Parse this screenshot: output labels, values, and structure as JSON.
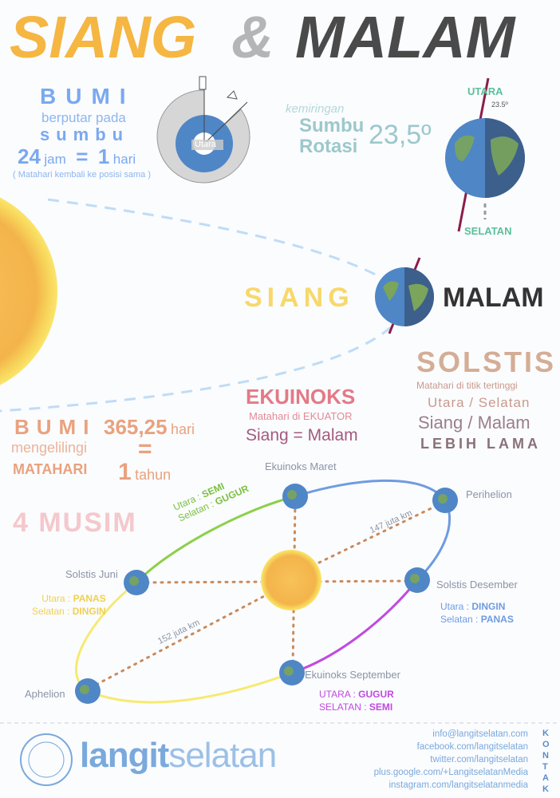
{
  "title": {
    "siang": "SIANG",
    "amp": "&",
    "malam": "MALAM"
  },
  "rotation": {
    "bumi": "BUMI",
    "berputar": "berputar pada",
    "sumbu": "sumbu",
    "hours": "24",
    "jam": "jam",
    "eq": "=",
    "days": "1",
    "hari": "hari",
    "note": "( Matahari kembali ke posisi sama )",
    "diagram_label": "Utara"
  },
  "tilt": {
    "kemiringan": "kemiringan",
    "sumbu": "Sumbu",
    "rotasi": "Rotasi",
    "value": "23,5º",
    "utara": "UTARA",
    "selatan": "SELATAN",
    "angle": "23.5º"
  },
  "daynight": {
    "siang": "SIANG",
    "malam": "MALAM"
  },
  "solstis": {
    "title": "SOLSTIS",
    "line1": "Matahari di titik tertinggi",
    "line2": "Utara / Selatan",
    "line3": "Siang / Malam",
    "line4": "LEBIH LAMA"
  },
  "ekuinoks": {
    "title": "EKUINOKS",
    "line1": "Matahari di EKUATOR",
    "line2": "Siang = Malam"
  },
  "revolution": {
    "bumi": "BUMI",
    "mengelilingi": "mengelilingi",
    "matahari": "MATAHARI",
    "days": "365,25",
    "hari": "hari",
    "eq": "=",
    "years": "1",
    "tahun": "tahun"
  },
  "musim": "4 MUSIM",
  "orbit": {
    "maret": "Ekuinoks Maret",
    "perihelion": "Perihelion",
    "desember": "Solstis Desember",
    "september": "Ekuinoks September",
    "aphelion": "Aphelion",
    "juni": "Solstis Juni",
    "dist_peri": "147 juta km",
    "dist_aph": "152 juta km",
    "spring": {
      "utara_label": "Utara :",
      "utara": "SEMI",
      "selatan_label": "Selatan :",
      "selatan": "GUGUR"
    },
    "juni_seasons": {
      "utara_label": "Utara :",
      "utara": "PANAS",
      "selatan_label": "Selatan :",
      "selatan": "DINGIN"
    },
    "des_seasons": {
      "utara_label": "Utara :",
      "utara": "DINGIN",
      "selatan_label": "Selatan :",
      "selatan": "PANAS"
    },
    "sep_seasons": {
      "utara_label": "UTARA :",
      "utara": "GUGUR",
      "selatan_label": "SELATAN :",
      "selatan": "SEMI"
    }
  },
  "footer": {
    "logo_seal": "LANGITSELATAN ASTRO 101",
    "brand_bold": "langit",
    "brand_light": "selatan",
    "kontak": "KONTAK",
    "links": [
      "info@langitselatan.com",
      "facebook.com/langitselatan",
      "twitter.com/langitselatan",
      "plus.google.com/+LangitselatanMedia",
      "instagram.com/langitselatanmedia"
    ]
  },
  "colors": {
    "orange": "#f5b642",
    "gray": "#b5b5b5",
    "dark": "#4a4a4a",
    "blue": "#7aa9f0",
    "teal": "#9cc8cc",
    "pink": "#e37a86",
    "tan": "#d4ad96",
    "salmon": "#e9a27e"
  }
}
